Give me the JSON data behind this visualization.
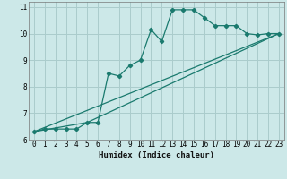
{
  "xlabel": "Humidex (Indice chaleur)",
  "bg_color": "#cce8e8",
  "grid_color": "#aacccc",
  "line_color": "#1a7a6e",
  "xlim": [
    -0.5,
    23.5
  ],
  "ylim": [
    6.0,
    11.2
  ],
  "xticks": [
    0,
    1,
    2,
    3,
    4,
    5,
    6,
    7,
    8,
    9,
    10,
    11,
    12,
    13,
    14,
    15,
    16,
    17,
    18,
    19,
    20,
    21,
    22,
    23
  ],
  "yticks": [
    6,
    7,
    8,
    9,
    10,
    11
  ],
  "main_x": [
    0,
    1,
    2,
    3,
    4,
    5,
    6,
    7,
    8,
    9,
    10,
    11,
    12,
    13,
    14,
    15,
    16,
    17,
    18,
    19,
    20,
    21,
    22,
    23
  ],
  "main_y": [
    6.3,
    6.4,
    6.4,
    6.4,
    6.4,
    6.65,
    6.65,
    8.5,
    8.4,
    8.8,
    9.0,
    10.15,
    9.7,
    10.9,
    10.9,
    10.9,
    10.6,
    10.3,
    10.3,
    10.3,
    10.0,
    9.95,
    10.0,
    10.0
  ],
  "line2_x": [
    0,
    23
  ],
  "line2_y": [
    6.3,
    10.0
  ],
  "line3_x": [
    0,
    5,
    23
  ],
  "line3_y": [
    6.3,
    6.65,
    10.0
  ]
}
